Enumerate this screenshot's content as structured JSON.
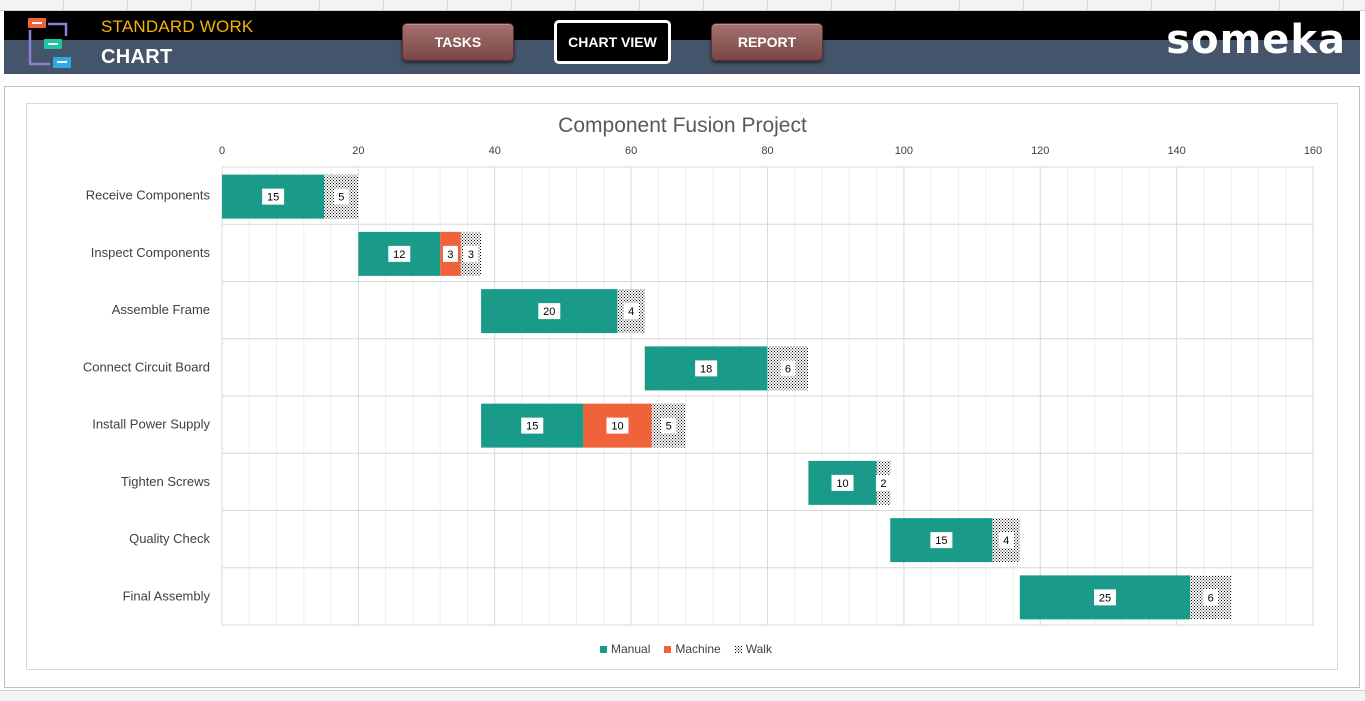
{
  "header": {
    "title_top": "STANDARD WORK",
    "title_bottom": "CHART",
    "brand": "someka",
    "buttons": [
      {
        "label": "TASKS",
        "active": false
      },
      {
        "label": "CHART VIEW",
        "active": true
      },
      {
        "label": "REPORT",
        "active": false
      }
    ]
  },
  "colors": {
    "manual": "#1a9a88",
    "machine": "#f0623a",
    "walk_pattern": "#000000",
    "header_dark": "#000000",
    "header_slate": "#44546a",
    "title_accent": "#f4b400"
  },
  "chart_data": {
    "type": "bar",
    "orientation": "horizontal",
    "stacked": true,
    "title": "Component Fusion Project",
    "xlim": [
      0,
      160
    ],
    "x_ticks": [
      0,
      20,
      40,
      60,
      80,
      100,
      120,
      140,
      160
    ],
    "grid": true,
    "legend_position": "bottom",
    "categories": [
      "Receive Components",
      "Inspect Components",
      "Assemble Frame",
      "Connect Circuit Board",
      "Install Power Supply",
      "Tighten Screws",
      "Quality Check",
      "Final Assembly"
    ],
    "start": [
      0,
      20,
      38,
      62,
      38,
      86,
      98,
      117
    ],
    "series": [
      {
        "name": "Manual",
        "values": [
          15,
          12,
          20,
          18,
          15,
          10,
          15,
          25
        ]
      },
      {
        "name": "Machine",
        "values": [
          0,
          3,
          0,
          0,
          10,
          0,
          0,
          0
        ]
      },
      {
        "name": "Walk",
        "values": [
          5,
          3,
          4,
          6,
          5,
          2,
          4,
          6
        ]
      }
    ]
  }
}
